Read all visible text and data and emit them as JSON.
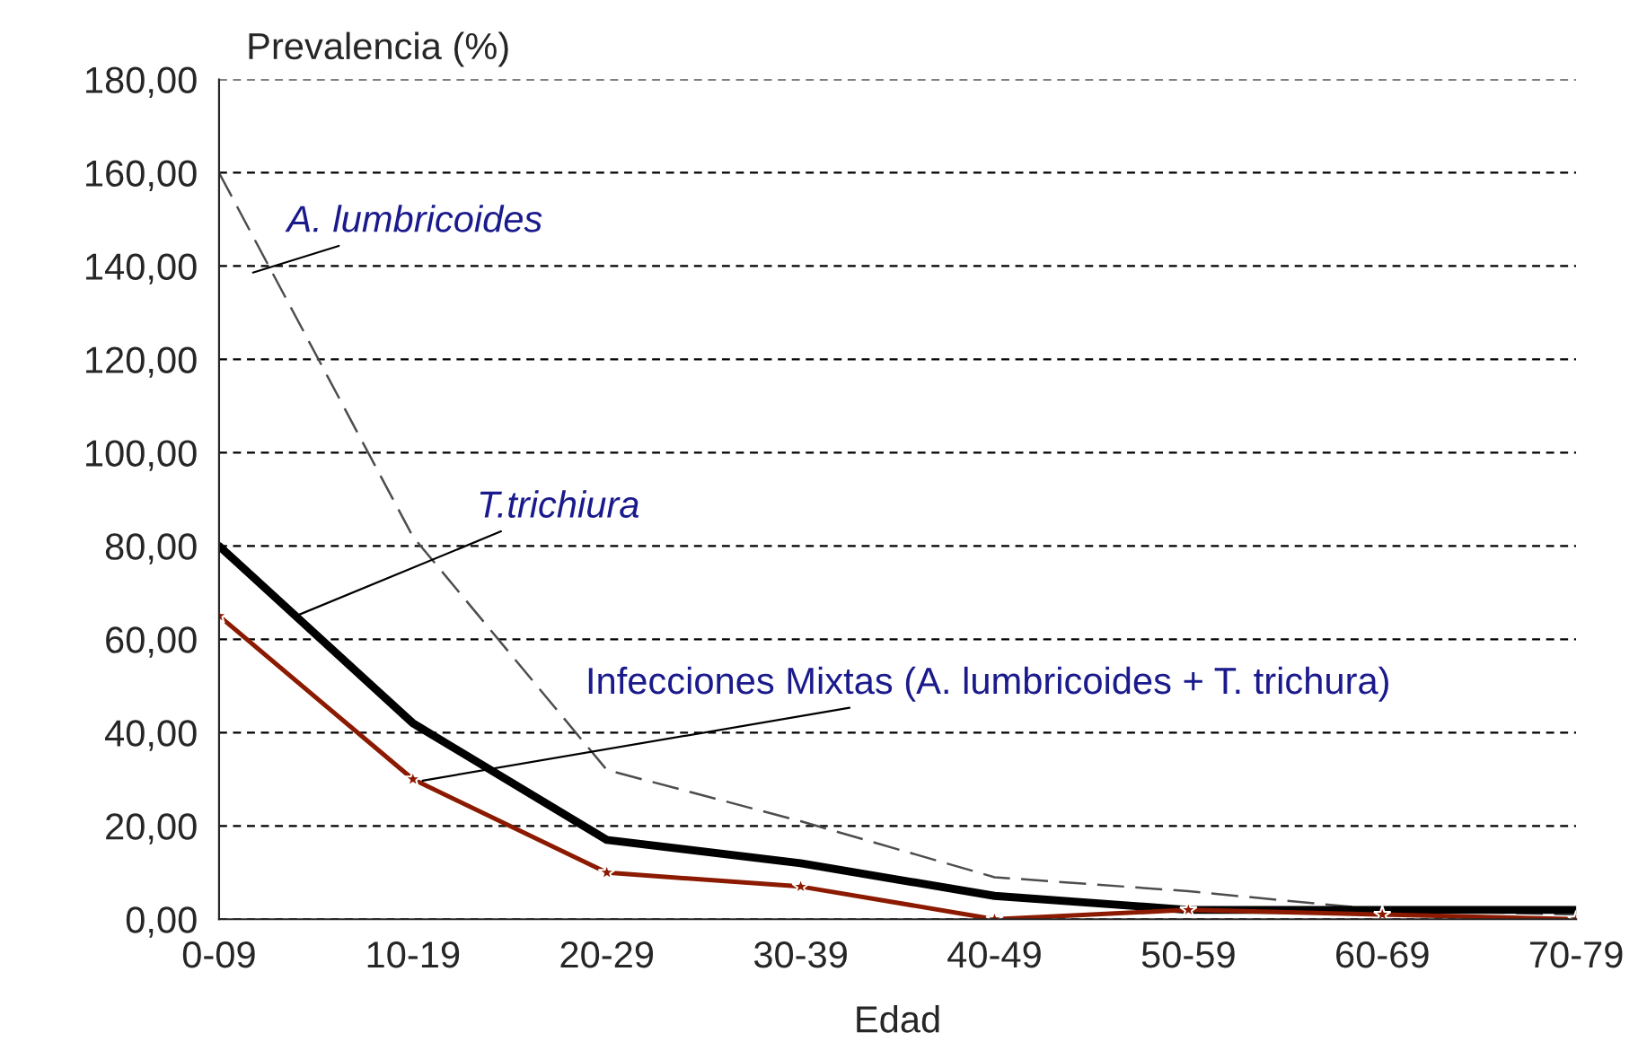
{
  "chart_data": {
    "type": "line",
    "xlabel": "Edad",
    "ylabel": "Prevalencia (%)",
    "categories": [
      "0-09",
      "10-19",
      "20-29",
      "30-39",
      "40-49",
      "50-59",
      "60-69",
      "70-79"
    ],
    "series": [
      {
        "name": "A. lumbricoides",
        "color": "#4d4d4d",
        "line_style": "dashed",
        "marker": "none",
        "values": [
          160,
          82,
          32,
          21,
          9,
          6,
          2,
          1
        ]
      },
      {
        "name": "T.trichiura",
        "color": "#000000",
        "line_style": "solid",
        "marker": "none",
        "values": [
          80,
          42,
          17,
          12,
          5,
          2,
          2,
          2
        ]
      },
      {
        "name": "Infecciones Mixtas (A. lumbricoides + T. trichura)",
        "color": "#8b1a00",
        "line_style": "solid",
        "marker": "star",
        "values": [
          65,
          30,
          10,
          7,
          0,
          2,
          1,
          0
        ]
      }
    ],
    "ylim": [
      0,
      180
    ],
    "yticks": [
      {
        "value": 0,
        "label": "0,00"
      },
      {
        "value": 20,
        "label": "20,00"
      },
      {
        "value": 40,
        "label": "40,00"
      },
      {
        "value": 60,
        "label": "60,00"
      },
      {
        "value": 80,
        "label": "80,00"
      },
      {
        "value": 100,
        "label": "100,00"
      },
      {
        "value": 120,
        "label": "120,00"
      },
      {
        "value": 140,
        "label": "140,00"
      },
      {
        "value": 160,
        "label": "160,00"
      },
      {
        "value": 180,
        "label": "180,00"
      }
    ],
    "grid": "y",
    "legend": false
  }
}
